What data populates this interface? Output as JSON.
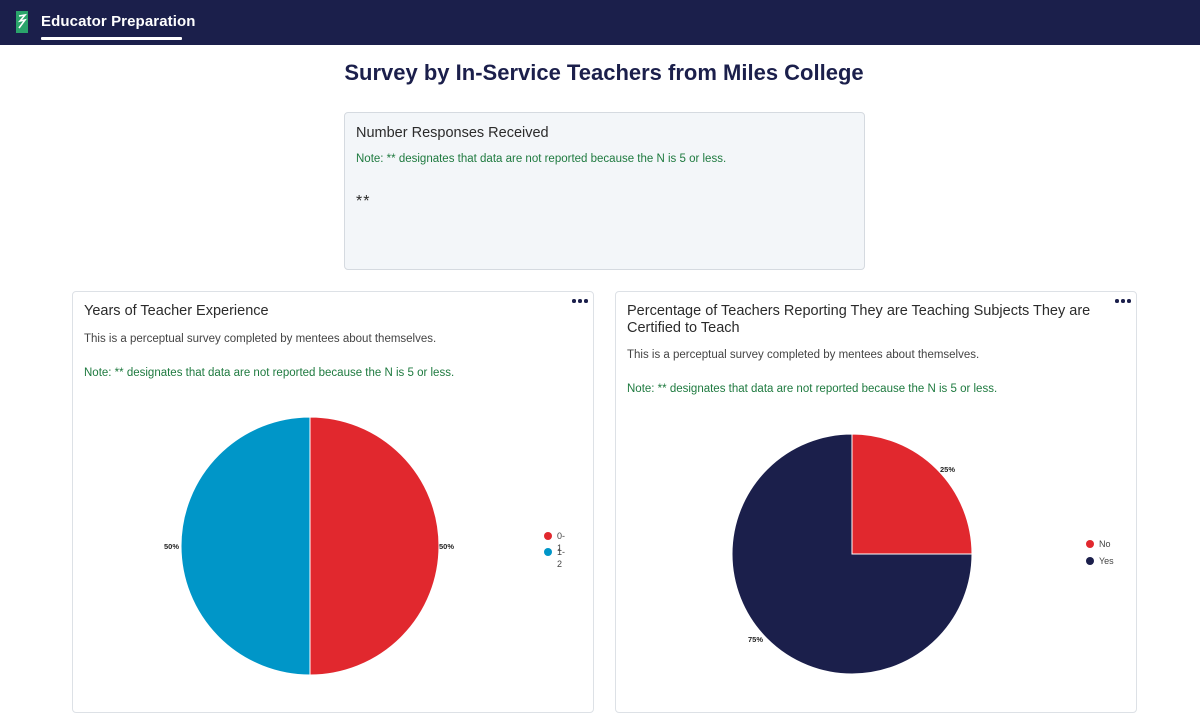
{
  "app": {
    "title": "Educator Preparation"
  },
  "page": {
    "title": "Survey by In-Service Teachers from Miles College"
  },
  "responses_card": {
    "title": "Number Responses Received",
    "note": "Note: ** designates that data are not reported because the N is 5 or less.",
    "value": "**"
  },
  "cards": [
    {
      "title": "Years of Teacher Experience",
      "description": "This is a perceptual survey completed by mentees about themselves.",
      "note": "Note: ** designates that data are not reported because the N is 5 or less.",
      "menu_icon": "more-horizontal-icon"
    },
    {
      "title": "Percentage of Teachers Reporting They are Teaching Subjects They are Certified to Teach",
      "description": "This is a perceptual survey completed by mentees about themselves.",
      "note": "Note: ** designates that data are not reported because the N is 5 or less.",
      "menu_icon": "more-horizontal-icon"
    }
  ],
  "colors": {
    "header": "#1b1f4b",
    "note_text": "#1e7a3f",
    "red": "#e1282e",
    "blue": "#0096c8",
    "navy": "#1b1f4b"
  },
  "chart_data": [
    {
      "type": "pie",
      "title": "Years of Teacher Experience",
      "categories": [
        "0-1",
        "1-2"
      ],
      "values": [
        50,
        50
      ],
      "labels": [
        "50%",
        "50%"
      ],
      "colors": [
        "#e1282e",
        "#0096c8"
      ],
      "legend": "right"
    },
    {
      "type": "pie",
      "title": "Percentage of Teachers Reporting They are Teaching Subjects They are Certified to Teach",
      "categories": [
        "No",
        "Yes"
      ],
      "values": [
        25,
        75
      ],
      "labels": [
        "25%",
        "75%"
      ],
      "colors": [
        "#e1282e",
        "#1b1f4b"
      ],
      "legend": "right"
    }
  ]
}
